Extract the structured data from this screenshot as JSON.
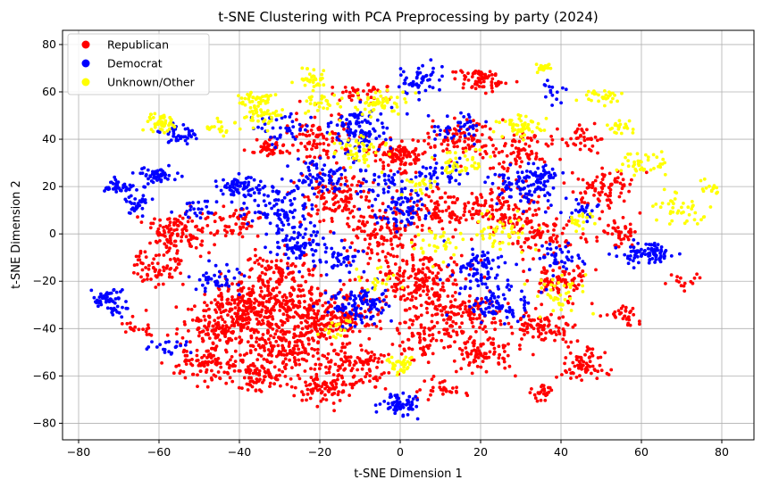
{
  "chart_data": {
    "type": "scatter",
    "title": "t-SNE Clustering with PCA Preprocessing by party (2024)",
    "xlabel": "t-SNE Dimension 1",
    "ylabel": "t-SNE Dimension 2",
    "xlim": [
      -84,
      88
    ],
    "ylim": [
      -87,
      86
    ],
    "xticks": [
      -80,
      -60,
      -40,
      -20,
      0,
      20,
      40,
      60,
      80
    ],
    "yticks": [
      -80,
      -60,
      -40,
      -20,
      0,
      20,
      40,
      60,
      80
    ],
    "grid": true,
    "legend_position": "top-left",
    "series": [
      {
        "name": "Republican",
        "color": "#ff0000",
        "clusters": [
          [
            -35,
            -30,
            9,
            7,
            320
          ],
          [
            -18,
            -35,
            8,
            8,
            240
          ],
          [
            -28,
            -48,
            8,
            7,
            200
          ],
          [
            -45,
            -40,
            6,
            5,
            130
          ],
          [
            -55,
            0,
            5,
            6,
            130
          ],
          [
            -60,
            -15,
            4,
            5,
            60
          ],
          [
            -48,
            -55,
            5,
            5,
            90
          ],
          [
            -35,
            -60,
            5,
            4,
            90
          ],
          [
            -20,
            -65,
            5,
            4,
            90
          ],
          [
            -10,
            -55,
            5,
            5,
            100
          ],
          [
            5,
            -20,
            8,
            8,
            200
          ],
          [
            15,
            -35,
            7,
            6,
            140
          ],
          [
            20,
            -50,
            5,
            5,
            90
          ],
          [
            0,
            33,
            4,
            4,
            110
          ],
          [
            20,
            65,
            4,
            3,
            70
          ],
          [
            -33,
            36,
            3,
            2,
            45
          ],
          [
            -15,
            15,
            6,
            7,
            120
          ],
          [
            -5,
            0,
            6,
            6,
            110
          ],
          [
            10,
            10,
            6,
            6,
            100
          ],
          [
            25,
            10,
            6,
            6,
            110
          ],
          [
            35,
            0,
            6,
            6,
            90
          ],
          [
            35,
            -40,
            5,
            4,
            90
          ],
          [
            45,
            -55,
            4,
            5,
            70
          ],
          [
            40,
            -20,
            5,
            5,
            80
          ],
          [
            50,
            20,
            5,
            6,
            80
          ],
          [
            -20,
            40,
            6,
            6,
            90
          ],
          [
            15,
            40,
            6,
            5,
            90
          ],
          [
            30,
            35,
            5,
            6,
            80
          ],
          [
            -40,
            5,
            4,
            4,
            50
          ],
          [
            5,
            -45,
            4,
            5,
            60
          ],
          [
            55,
            -35,
            3,
            3,
            30
          ],
          [
            35,
            -67,
            2,
            2,
            25
          ],
          [
            -65,
            -40,
            3,
            3,
            20
          ],
          [
            -30,
            -15,
            6,
            5,
            80
          ],
          [
            10,
            -65,
            4,
            3,
            30
          ],
          [
            70,
            -20,
            3,
            3,
            15
          ],
          [
            55,
            0,
            3,
            3,
            40
          ],
          [
            -10,
            60,
            4,
            3,
            40
          ],
          [
            45,
            40,
            4,
            4,
            40
          ]
        ]
      },
      {
        "name": "Democrat",
        "color": "#0000ff",
        "clusters": [
          [
            -60,
            25,
            3,
            2,
            50
          ],
          [
            -70,
            20,
            3,
            2,
            40
          ],
          [
            -55,
            42,
            3,
            3,
            40
          ],
          [
            -40,
            20,
            4,
            3,
            70
          ],
          [
            -30,
            10,
            5,
            5,
            90
          ],
          [
            -20,
            25,
            5,
            5,
            80
          ],
          [
            -10,
            45,
            5,
            6,
            100
          ],
          [
            -25,
            -5,
            5,
            5,
            80
          ],
          [
            -10,
            -30,
            5,
            5,
            110
          ],
          [
            0,
            -72,
            3,
            3,
            70
          ],
          [
            0,
            10,
            4,
            5,
            70
          ],
          [
            5,
            65,
            3,
            4,
            50
          ],
          [
            20,
            -15,
            5,
            5,
            80
          ],
          [
            25,
            -30,
            5,
            5,
            80
          ],
          [
            30,
            20,
            5,
            5,
            80
          ],
          [
            35,
            25,
            3,
            3,
            40
          ],
          [
            62,
            -8,
            4,
            3,
            90
          ],
          [
            -72,
            -28,
            3,
            4,
            60
          ],
          [
            -65,
            13,
            2,
            3,
            30
          ],
          [
            15,
            45,
            4,
            4,
            40
          ],
          [
            -45,
            -20,
            4,
            4,
            40
          ],
          [
            -5,
            20,
            4,
            4,
            40
          ],
          [
            10,
            25,
            4,
            4,
            40
          ],
          [
            -30,
            45,
            4,
            4,
            40
          ],
          [
            40,
            -10,
            4,
            4,
            40
          ],
          [
            -50,
            10,
            3,
            3,
            25
          ],
          [
            -58,
            -48,
            3,
            2,
            20
          ],
          [
            38,
            60,
            2,
            3,
            15
          ],
          [
            -15,
            -10,
            4,
            4,
            40
          ],
          [
            45,
            10,
            3,
            3,
            25
          ]
        ]
      },
      {
        "name": "Unknown/Other",
        "color": "#ffff00",
        "clusters": [
          [
            -60,
            47,
            3,
            3,
            50
          ],
          [
            -35,
            57,
            3,
            2,
            40
          ],
          [
            -22,
            65,
            2,
            3,
            35
          ],
          [
            -5,
            55,
            4,
            4,
            60
          ],
          [
            -10,
            35,
            4,
            4,
            50
          ],
          [
            -35,
            50,
            3,
            3,
            40
          ],
          [
            30,
            45,
            4,
            3,
            60
          ],
          [
            35,
            70,
            2,
            1,
            20
          ],
          [
            50,
            58,
            3,
            2,
            30
          ],
          [
            55,
            45,
            2,
            2,
            20
          ],
          [
            60,
            30,
            4,
            3,
            40
          ],
          [
            70,
            10,
            4,
            4,
            40
          ],
          [
            77,
            20,
            2,
            3,
            15
          ],
          [
            15,
            30,
            4,
            4,
            40
          ],
          [
            25,
            0,
            5,
            5,
            50
          ],
          [
            10,
            -5,
            4,
            4,
            30
          ],
          [
            0,
            -55,
            2,
            3,
            35
          ],
          [
            40,
            -25,
            4,
            5,
            40
          ],
          [
            -15,
            -40,
            3,
            3,
            20
          ],
          [
            -20,
            55,
            3,
            3,
            25
          ],
          [
            5,
            20,
            3,
            3,
            20
          ],
          [
            -5,
            -20,
            3,
            3,
            20
          ],
          [
            -45,
            45,
            3,
            3,
            20
          ],
          [
            45,
            5,
            3,
            3,
            20
          ]
        ]
      }
    ]
  }
}
